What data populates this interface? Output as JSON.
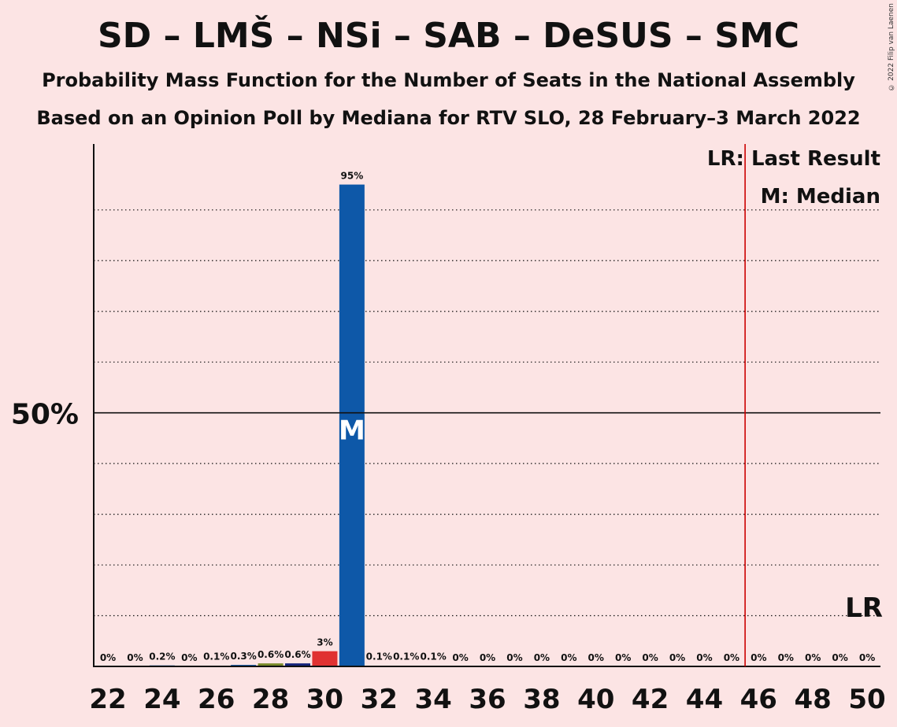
{
  "title": "SD – LMŠ – NSi – SAB – DeSUS – SMC",
  "subtitle": "Probability Mass Function for the Number of Seats in the National Assembly",
  "source_line": "Based on an Opinion Poll by Mediana for RTV SLO, 28 February–3 March 2022",
  "copyright": "© 2022 Filip van Laenen",
  "legend": {
    "last_result": "LR: Last Result",
    "median": "M: Median"
  },
  "markers": {
    "median_letter": "M",
    "lr_letter": "LR"
  },
  "colors": {
    "background": "#fce4e4",
    "primary_bar": "#0e58a8",
    "red_bar": "#e03131",
    "olive_bar": "#7a8b2a",
    "navy_bar": "#15237a",
    "last_result_line": "#cc0000"
  },
  "chart_data": {
    "type": "bar",
    "x": [
      22,
      23,
      24,
      25,
      26,
      27,
      28,
      29,
      30,
      31,
      32,
      33,
      34,
      35,
      36,
      37,
      38,
      39,
      40,
      41,
      42,
      43,
      44,
      45,
      46,
      47,
      48,
      49,
      50
    ],
    "values": [
      0,
      0,
      0.2,
      0,
      0.1,
      0.3,
      0.6,
      0.6,
      3,
      95,
      0.1,
      0.1,
      0.1,
      0,
      0,
      0,
      0,
      0,
      0,
      0,
      0,
      0,
      0,
      0,
      0,
      0,
      0,
      0,
      0
    ],
    "labels": [
      "0%",
      "0%",
      "0.2%",
      "0%",
      "0.1%",
      "0.3%",
      "0.6%",
      "0.6%",
      "3%",
      "95%",
      "0.1%",
      "0.1%",
      "0.1%",
      "0%",
      "0%",
      "0%",
      "0%",
      "0%",
      "0%",
      "0%",
      "0%",
      "0%",
      "0%",
      "0%",
      "0%",
      "0%",
      "0%",
      "0%",
      "0%"
    ],
    "bar_colors": [
      "primary",
      "primary",
      "primary",
      "primary",
      "primary",
      "primary",
      "olive",
      "navy",
      "red",
      "primary",
      "primary",
      "primary",
      "primary",
      "primary",
      "primary",
      "primary",
      "primary",
      "primary",
      "primary",
      "primary",
      "primary",
      "primary",
      "primary",
      "primary",
      "primary",
      "primary",
      "primary",
      "primary",
      "primary"
    ],
    "x_tick_labels": [
      "22",
      "24",
      "26",
      "28",
      "30",
      "32",
      "34",
      "36",
      "38",
      "40",
      "42",
      "44",
      "46",
      "48",
      "50"
    ],
    "y_tick_label": "50%",
    "ylim": [
      0,
      103
    ],
    "median_seat": 31,
    "last_result_seat": 45.5,
    "grid": "dotted every 10%",
    "xlabel": "",
    "ylabel": ""
  }
}
